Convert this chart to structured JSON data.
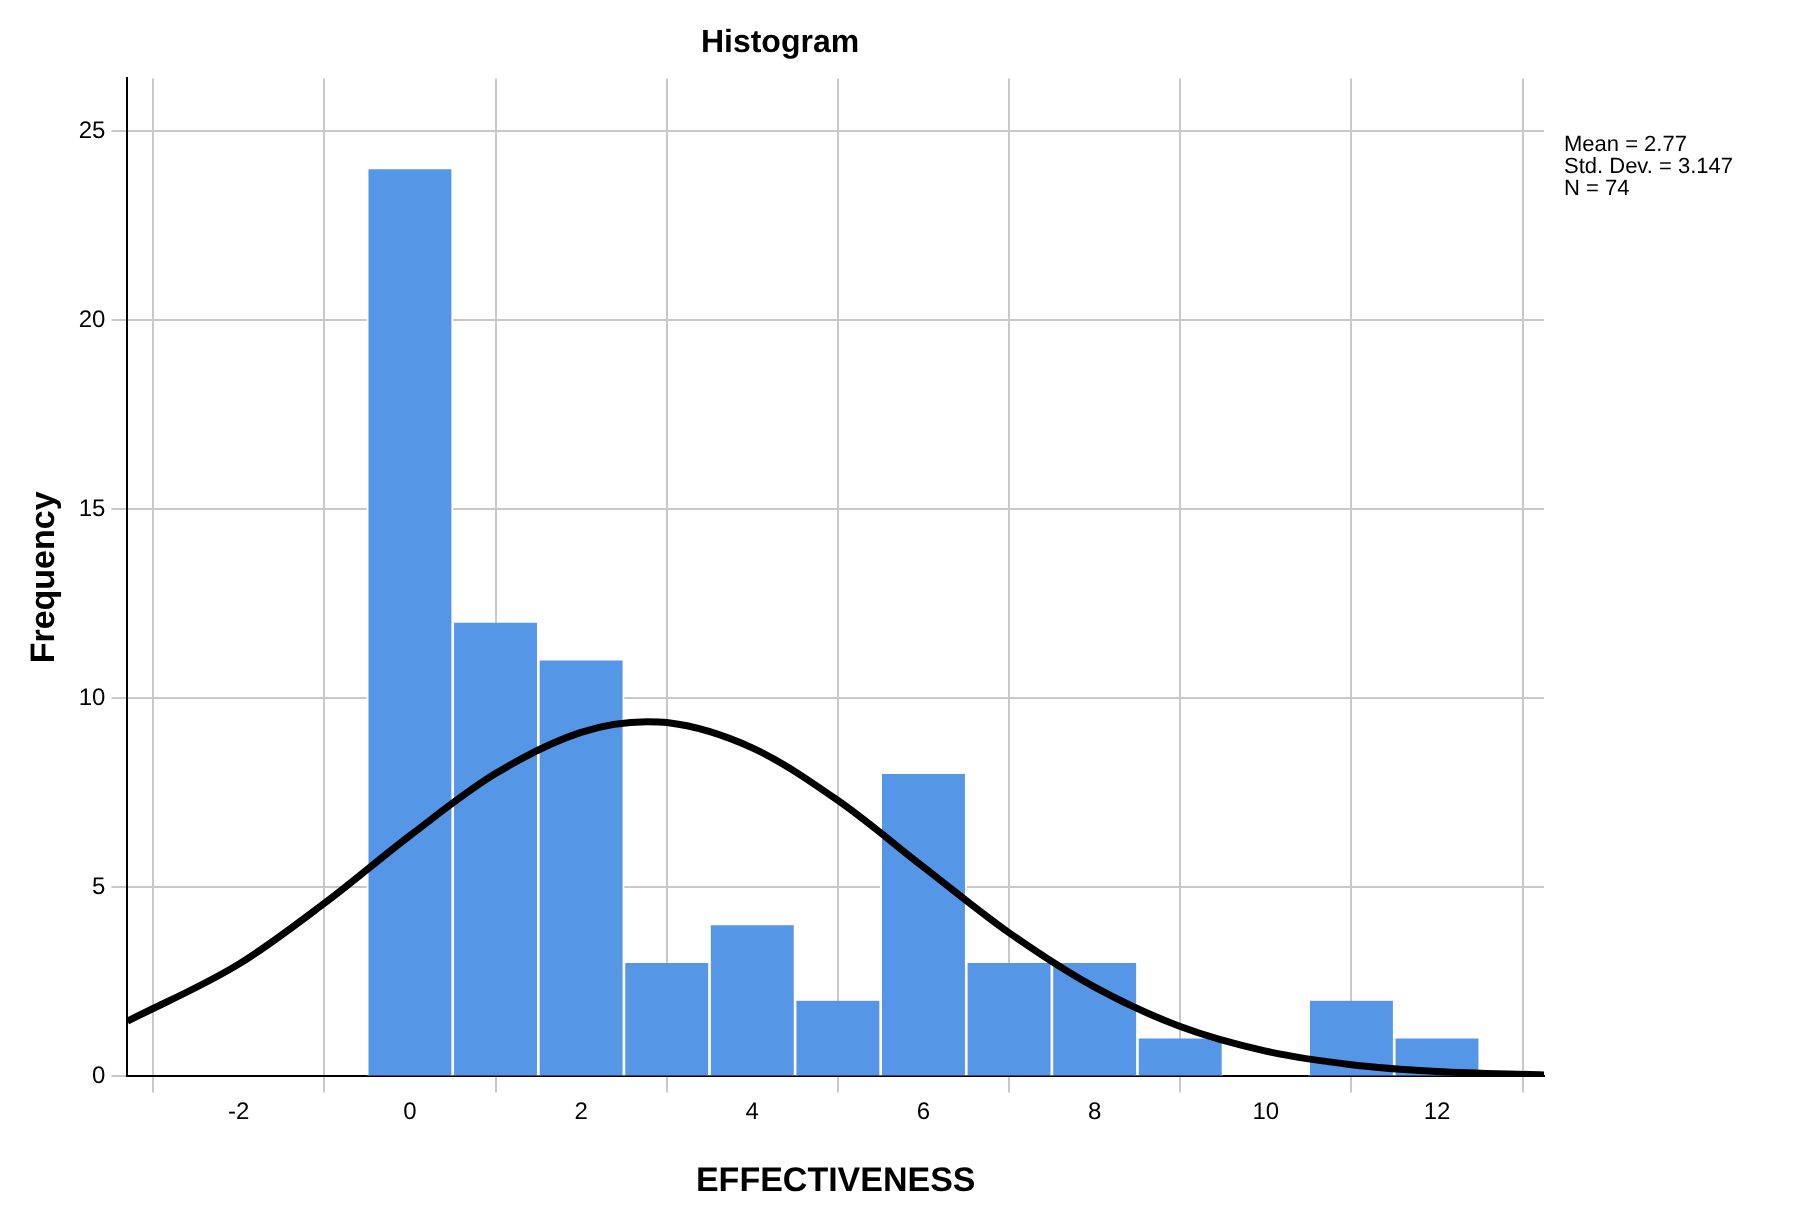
{
  "chart_data": {
    "type": "histogram",
    "title": "Histogram",
    "xlabel": "EFFECTIVENESS",
    "ylabel": "Frequency",
    "bins": [
      -0.5,
      0.5,
      1.5,
      2.5,
      3.5,
      4.5,
      5.5,
      6.5,
      7.5,
      8.5,
      9.5,
      10.5,
      11.5,
      12.5
    ],
    "values": [
      24,
      12,
      11,
      3,
      4,
      2,
      8,
      3,
      3,
      1,
      0,
      2,
      1
    ],
    "color": "#5596e6",
    "series": [
      {
        "type": "line",
        "color": "#000000",
        "x": [
          -3.3,
          -2,
          -1,
          0,
          1,
          2,
          2.77,
          3,
          4,
          5,
          6,
          7,
          8,
          9,
          10,
          11,
          12,
          13.25
        ],
        "values": [
          1.46,
          2.97,
          4.58,
          6.37,
          8.01,
          9.1,
          9.38,
          9.36,
          8.69,
          7.3,
          5.54,
          3.8,
          2.36,
          1.32,
          0.67,
          0.31,
          0.13,
          0.04
        ]
      }
    ],
    "xlim": [
      -3.3,
      13.25
    ],
    "xticks": [
      -2,
      0,
      2,
      4,
      6,
      8,
      10,
      12
    ],
    "ylim": [
      0,
      26.4
    ],
    "yticks": [
      0,
      5,
      10,
      15,
      20,
      25
    ],
    "grid": true,
    "legend": false,
    "marker": "none",
    "annotations": [
      "Mean = 2.77",
      "Std. Dev. = 3.147",
      "N = 74"
    ]
  }
}
